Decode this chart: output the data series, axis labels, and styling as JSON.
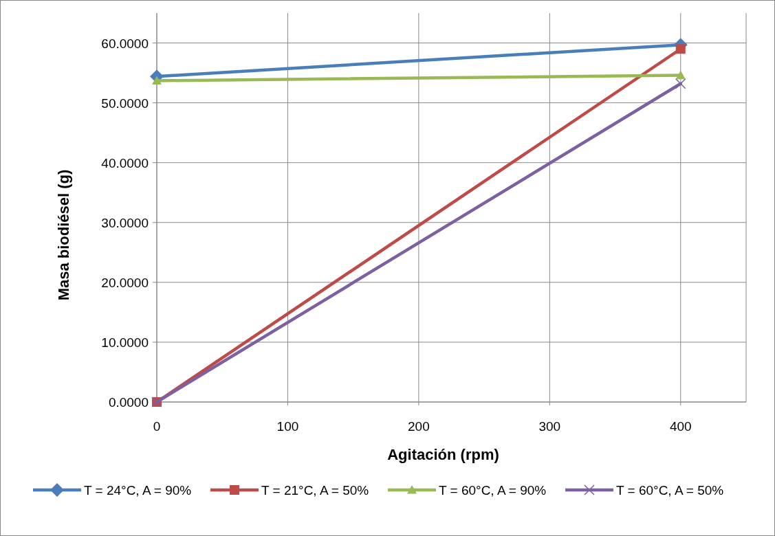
{
  "chart_data": {
    "type": "line",
    "xlabel": "Agitación (rpm)",
    "ylabel": "Masa biodiésel (g)",
    "x": [
      0,
      400
    ],
    "xlim": [
      0,
      450
    ],
    "xticks": [
      0,
      100,
      200,
      300,
      400
    ],
    "ylim": [
      0,
      65
    ],
    "yticks": [
      {
        "value": 0,
        "label": "0.0000"
      },
      {
        "value": 10,
        "label": "10.0000"
      },
      {
        "value": 20,
        "label": "20.0000"
      },
      {
        "value": 30,
        "label": "30.0000"
      },
      {
        "value": 40,
        "label": "40.0000"
      },
      {
        "value": 50,
        "label": "50.0000"
      },
      {
        "value": 60,
        "label": "60.0000"
      }
    ],
    "grid": true,
    "legend": "bottom",
    "line_style": "solid",
    "series": [
      {
        "name": "T = 24°C, A = 90%",
        "color": "#4a7ebb",
        "marker": "diamond",
        "values": [
          54.4,
          59.7
        ]
      },
      {
        "name": "T = 21°C, A = 50%",
        "color": "#be4b48",
        "marker": "square",
        "values": [
          0,
          59.0
        ]
      },
      {
        "name": "T = 60°C, A = 90%",
        "color": "#98b954",
        "marker": "triangle",
        "values": [
          53.7,
          54.6
        ]
      },
      {
        "name": "T = 60°C, A = 50%",
        "color": "#7d60a0",
        "marker": "cross",
        "values": [
          0,
          53.2
        ]
      }
    ]
  }
}
